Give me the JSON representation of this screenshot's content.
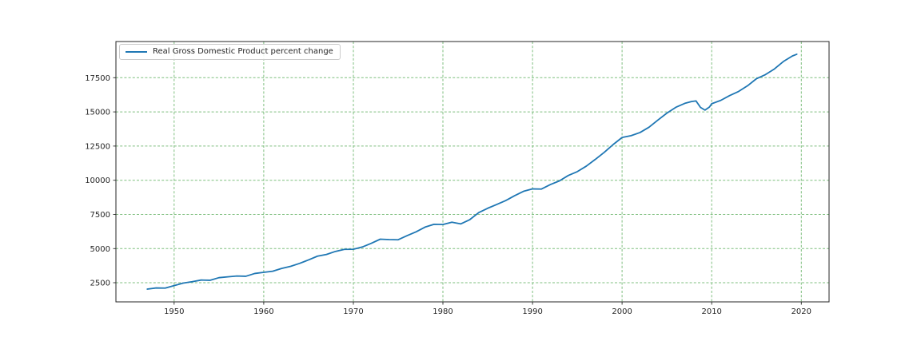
{
  "chart_data": {
    "type": "line",
    "title": "",
    "xlabel": "",
    "ylabel": "",
    "xlim": [
      1943.5,
      2023.1
    ],
    "ylim": [
      1100,
      20150
    ],
    "xticks": [
      1950,
      1960,
      1970,
      1980,
      1990,
      2000,
      2010,
      2020
    ],
    "yticks": [
      2500,
      5000,
      7500,
      10000,
      12500,
      15000,
      17500
    ],
    "grid": {
      "on": true,
      "color": "#7fbf7f",
      "style": "dashed"
    },
    "legend_position": "upper left",
    "colors": {
      "line": "#1f77b4",
      "spine": "#262626",
      "tick_label": "#262626",
      "background": "#ffffff"
    },
    "series": [
      {
        "name": "Real Gross Domestic Product percent change",
        "color": "#1f77b4",
        "x": [
          1947,
          1948,
          1949,
          1950,
          1951,
          1952,
          1953,
          1954,
          1955,
          1956,
          1957,
          1958,
          1959,
          1960,
          1961,
          1962,
          1963,
          1964,
          1965,
          1966,
          1967,
          1968,
          1969,
          1970,
          1971,
          1972,
          1973,
          1974,
          1975,
          1976,
          1977,
          1978,
          1979,
          1980,
          1981,
          1982,
          1983,
          1984,
          1985,
          1986,
          1987,
          1988,
          1989,
          1990,
          1991,
          1992,
          1993,
          1994,
          1995,
          1996,
          1997,
          1998,
          1999,
          2000,
          2001,
          2002,
          2003,
          2004,
          2005,
          2006,
          2007,
          2007.75,
          2008.25,
          2008.75,
          2009.25,
          2009.75,
          2010,
          2011,
          2012,
          2013,
          2014,
          2015,
          2016,
          2017,
          2018,
          2019,
          2019.5
        ],
        "y": [
          2033,
          2119,
          2106,
          2290,
          2474,
          2575,
          2696,
          2680,
          2871,
          2932,
          2994,
          2973,
          3178,
          3260,
          3344,
          3548,
          3703,
          3916,
          4171,
          4446,
          4568,
          4792,
          4942,
          4951,
          5114,
          5383,
          5687,
          5657,
          5645,
          5949,
          6224,
          6569,
          6777,
          6759,
          6931,
          6806,
          7118,
          7633,
          7951,
          8226,
          8511,
          8867,
          9192,
          9366,
          9355,
          9685,
          9952,
          10352,
          10630,
          11031,
          11522,
          12038,
          12611,
          13131,
          13262,
          13493,
          13879,
          14406,
          14913,
          15338,
          15626,
          15762,
          15802,
          15328,
          15134,
          15357,
          15599,
          15841,
          16197,
          16495,
          16912,
          17432,
          17731,
          18144,
          18688,
          19092,
          19220
        ]
      }
    ]
  }
}
